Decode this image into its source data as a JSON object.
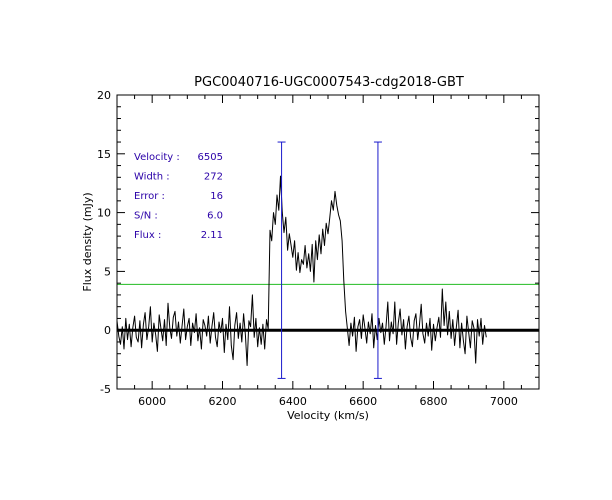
{
  "chart_data": {
    "type": "line",
    "title": "PGC0040716-UGC0007543-cdg2018-GBT",
    "xlabel": "Velocity (km/s)",
    "ylabel": "Flux density (mJy)",
    "xlim": [
      5900,
      7100
    ],
    "ylim": [
      -5,
      20
    ],
    "x_ticks": [
      6000,
      6200,
      6400,
      6600,
      6800,
      7000
    ],
    "x_tick_labels": [
      "6000",
      "6200",
      "6400",
      "6600",
      "6800",
      "7000"
    ],
    "y_ticks": [
      -5,
      0,
      5,
      10,
      15,
      20
    ],
    "y_tick_labels": [
      "-5",
      "0",
      "5",
      "10",
      "15",
      "20"
    ],
    "zero_line": 0,
    "threshold_line": {
      "value": 3.9,
      "color": "#22bb22"
    },
    "width_markers": {
      "x": [
        6368,
        6642
      ],
      "ymin": -4.1,
      "ymax": 16,
      "color": "#1a1acc"
    },
    "stats": [
      {
        "label": "Velocity :",
        "value": "6505"
      },
      {
        "label": "Width :",
        "value": "272"
      },
      {
        "label": "Error :",
        "value": "16"
      },
      {
        "label": "S/N :",
        "value": "6.0"
      },
      {
        "label": "Flux :",
        "value": "2.11"
      }
    ],
    "series": [
      {
        "name": "spectrum",
        "x_start": 5900,
        "x_step": 5,
        "y": [
          0.8,
          -0.5,
          -1.2,
          0.3,
          -1.6,
          1.0,
          -0.8,
          0.5,
          -1.4,
          0.2,
          1.2,
          -0.6,
          -1.0,
          0.8,
          -1.5,
          0.5,
          1.5,
          -0.8,
          0.3,
          2.0,
          -1.0,
          0.6,
          -0.4,
          -1.8,
          1.3,
          0.1,
          -0.9,
          0.9,
          -1.3,
          2.3,
          0.2,
          -0.7,
          1.1,
          1.6,
          -0.5,
          0.7,
          -1.1,
          0.4,
          1.8,
          -0.8,
          0.3,
          1.0,
          -1.3,
          0.6,
          -0.2,
          1.4,
          -0.9,
          0.2,
          -1.6,
          0.9,
          0.4,
          -0.5,
          1.2,
          -1.1,
          0.3,
          1.5,
          -0.6,
          -1.4,
          0.7,
          -0.2,
          1.0,
          -1.9,
          0.5,
          -0.8,
          2.0,
          -1.3,
          -2.5,
          0.4,
          1.5,
          -0.7,
          0.6,
          -1.0,
          1.4,
          -0.4,
          -3.0,
          0.8,
          0.3,
          3.0,
          -0.6,
          1.0,
          -1.4,
          0.2,
          -1.2,
          0.5,
          -1.6,
          0.9,
          0.1,
          8.5,
          7.6,
          10.0,
          9.0,
          11.5,
          10.2,
          13.1,
          10.0,
          8.3,
          9.6,
          6.8,
          8.2,
          7.2,
          6.2,
          7.6,
          5.1,
          6.6,
          4.9,
          6.0,
          5.6,
          7.2,
          5.3,
          6.5,
          5.0,
          7.3,
          4.1,
          7.6,
          6.0,
          8.1,
          6.5,
          8.6,
          7.2,
          9.1,
          8.2,
          9.6,
          11.0,
          10.2,
          11.8,
          10.6,
          9.8,
          9.3,
          7.6,
          4.2,
          1.6,
          0.2,
          -1.3,
          0.6,
          -0.5,
          1.1,
          -1.8,
          0.3,
          0.9,
          -0.7,
          1.3,
          0.2,
          -1.1,
          0.7,
          -0.3,
          1.4,
          -1.5,
          0.4,
          -0.8,
          1.0,
          -0.2,
          0.6,
          -1.2,
          0.3,
          2.4,
          -0.9,
          0.7,
          -0.3,
          2.4,
          -1.2,
          0.6,
          1.8,
          -0.4,
          0.9,
          -1.6,
          0.3,
          1.2,
          -0.6,
          -1.4,
          0.8,
          1.4,
          -0.8,
          0.4,
          2.2,
          -0.3,
          -1.1,
          0.6,
          -0.5,
          1.0,
          -1.7,
          0.5,
          -0.9,
          0.2,
          1.1,
          -0.6,
          3.5,
          0.4,
          2.4,
          -0.4,
          1.6,
          -0.7,
          0.9,
          -1.3,
          0.3,
          1.7,
          -1.5,
          0.6,
          -0.9,
          -2.0,
          1.2,
          -0.2,
          -1.5,
          0.8,
          0.2,
          -2.8,
          0.9,
          -0.5,
          1.0,
          -1.2,
          0.4,
          -0.6
        ]
      }
    ]
  }
}
